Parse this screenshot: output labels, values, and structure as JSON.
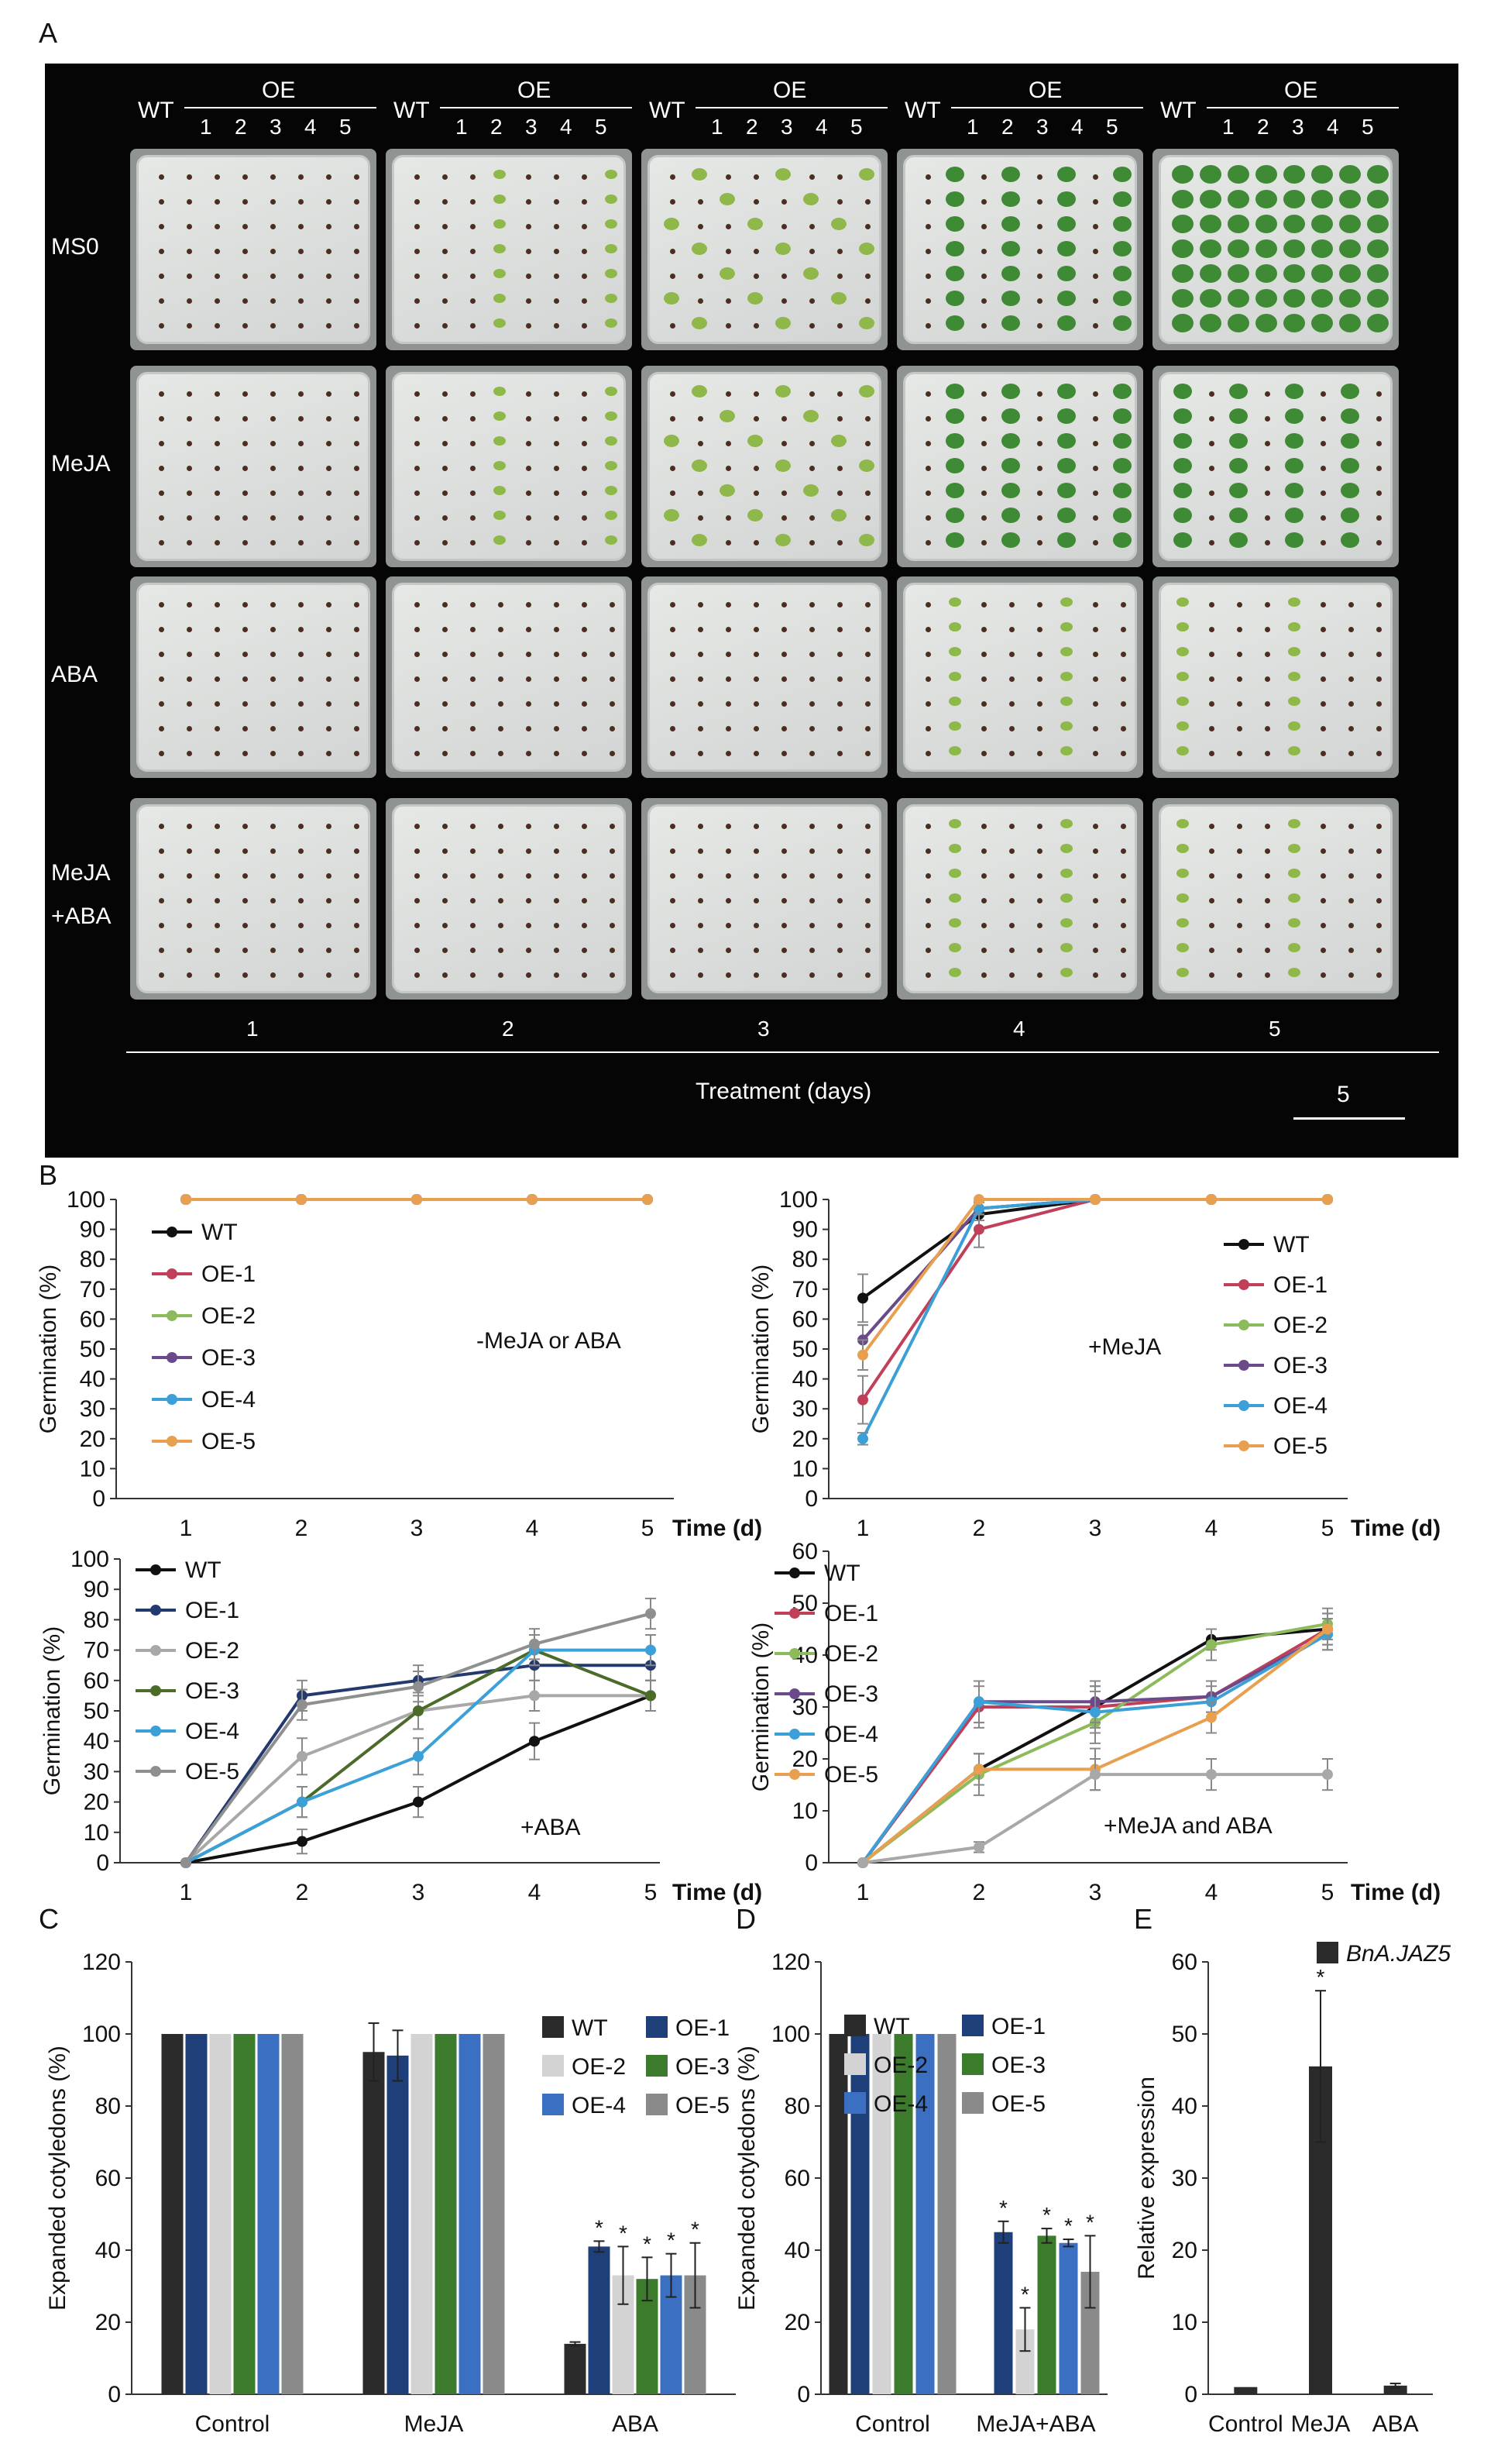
{
  "panel_labels": {
    "a": "A",
    "b": "B",
    "c": "C",
    "d": "D",
    "e": "E"
  },
  "photo_panel": {
    "header_groups": [
      {
        "wt": "WT",
        "oe": "OE",
        "lines": [
          "1",
          "2",
          "3",
          "4",
          "5"
        ]
      },
      {
        "wt": "WT",
        "oe": "OE",
        "lines": [
          "1",
          "2",
          "3",
          "4",
          "5"
        ]
      },
      {
        "wt": "WT",
        "oe": "OE",
        "lines": [
          "1",
          "2",
          "3",
          "4",
          "5"
        ]
      },
      {
        "wt": "WT",
        "oe": "OE",
        "lines": [
          "1",
          "2",
          "3",
          "4",
          "5"
        ]
      },
      {
        "wt": "WT",
        "oe": "OE",
        "lines": [
          "1",
          "2",
          "3",
          "4",
          "5"
        ]
      }
    ],
    "row_labels": [
      "MS0",
      "MeJA",
      "ABA",
      "MeJA\n+ABA"
    ],
    "day_labels": [
      "1",
      "2",
      "3",
      "4",
      "5"
    ],
    "x_axis_label": "Treatment (days)",
    "scale_label": "5",
    "seedling_growth": [
      [
        0,
        1,
        2,
        3,
        4
      ],
      [
        0,
        1,
        2,
        3,
        3
      ],
      [
        0,
        0,
        0,
        1,
        1
      ],
      [
        0,
        0,
        0,
        1,
        1
      ]
    ]
  },
  "chart_data": [
    {
      "id": "B1",
      "type": "line",
      "ylabel": "Germination (%)",
      "xlabel": "Time (d)",
      "annotation": "-MeJA or ABA",
      "ylim": [
        0,
        100
      ],
      "yticks": [
        0,
        10,
        20,
        30,
        40,
        50,
        60,
        70,
        80,
        90,
        100
      ],
      "x": [
        1,
        2,
        3,
        4,
        5
      ],
      "series": [
        {
          "name": "WT",
          "color": "#111111",
          "values": [
            100,
            100,
            100,
            100,
            100
          ],
          "err": [
            0,
            0,
            0,
            0,
            0
          ]
        },
        {
          "name": "OE-1",
          "color": "#c0405a",
          "values": [
            100,
            100,
            100,
            100,
            100
          ],
          "err": [
            0,
            0,
            0,
            0,
            0
          ]
        },
        {
          "name": "OE-2",
          "color": "#8dbb5c",
          "values": [
            100,
            100,
            100,
            100,
            100
          ],
          "err": [
            0,
            0,
            0,
            0,
            0
          ]
        },
        {
          "name": "OE-3",
          "color": "#6b4a8c",
          "values": [
            100,
            100,
            100,
            100,
            100
          ],
          "err": [
            0,
            0,
            0,
            0,
            0
          ]
        },
        {
          "name": "OE-4",
          "color": "#3ba0d8",
          "values": [
            100,
            100,
            100,
            100,
            100
          ],
          "err": [
            0,
            0,
            0,
            0,
            0
          ]
        },
        {
          "name": "OE-5",
          "color": "#e8a050",
          "values": [
            100,
            100,
            100,
            100,
            100
          ],
          "err": [
            0,
            0,
            0,
            0,
            0
          ]
        }
      ]
    },
    {
      "id": "B2",
      "type": "line",
      "ylabel": "Germination (%)",
      "xlabel": "Time (d)",
      "annotation": "+MeJA",
      "ylim": [
        0,
        100
      ],
      "yticks": [
        0,
        10,
        20,
        30,
        40,
        50,
        60,
        70,
        80,
        90,
        100
      ],
      "x": [
        1,
        2,
        3,
        4,
        5
      ],
      "series": [
        {
          "name": "WT",
          "color": "#111111",
          "values": [
            67,
            95,
            100,
            100,
            100
          ],
          "err": [
            8,
            2,
            0,
            0,
            0
          ]
        },
        {
          "name": "OE-1",
          "color": "#c0405a",
          "values": [
            33,
            90,
            100,
            100,
            100
          ],
          "err": [
            8,
            6,
            0,
            0,
            0
          ]
        },
        {
          "name": "OE-2",
          "color": "#8dbb5c",
          "values": [
            53,
            97,
            100,
            100,
            100
          ],
          "err": [
            5,
            2,
            0,
            0,
            0
          ]
        },
        {
          "name": "OE-3",
          "color": "#6b4a8c",
          "values": [
            53,
            97,
            100,
            100,
            100
          ],
          "err": [
            5,
            2,
            0,
            0,
            0
          ]
        },
        {
          "name": "OE-4",
          "color": "#3ba0d8",
          "values": [
            20,
            97,
            100,
            100,
            100
          ],
          "err": [
            2,
            2,
            0,
            0,
            0
          ]
        },
        {
          "name": "OE-5",
          "color": "#e8a050",
          "values": [
            48,
            100,
            100,
            100,
            100
          ],
          "err": [
            5,
            0,
            0,
            0,
            0
          ]
        }
      ]
    },
    {
      "id": "B3",
      "type": "line",
      "ylabel": "Germination (%)",
      "xlabel": "Time (d)",
      "annotation": "+ABA",
      "ylim": [
        0,
        100
      ],
      "yticks": [
        0,
        10,
        20,
        30,
        40,
        50,
        60,
        70,
        80,
        90,
        100
      ],
      "x": [
        1,
        2,
        3,
        4,
        5
      ],
      "series": [
        {
          "name": "WT",
          "color": "#111111",
          "values": [
            0,
            7,
            20,
            40,
            55
          ],
          "err": [
            0,
            4,
            5,
            6,
            5
          ]
        },
        {
          "name": "OE-1",
          "color": "#243a6e",
          "values": [
            0,
            55,
            60,
            65,
            65
          ],
          "err": [
            0,
            5,
            5,
            5,
            5
          ]
        },
        {
          "name": "OE-2",
          "color": "#a8a8a8",
          "values": [
            0,
            35,
            50,
            55,
            55
          ],
          "err": [
            0,
            6,
            6,
            5,
            5
          ]
        },
        {
          "name": "OE-3",
          "color": "#4a6b2a",
          "values": [
            0,
            20,
            50,
            70,
            55
          ],
          "err": [
            0,
            5,
            6,
            5,
            5
          ]
        },
        {
          "name": "OE-4",
          "color": "#3ba0d8",
          "values": [
            0,
            20,
            35,
            70,
            70
          ],
          "err": [
            0,
            5,
            6,
            5,
            5
          ]
        },
        {
          "name": "OE-5",
          "color": "#8f8f8f",
          "values": [
            0,
            52,
            58,
            72,
            82
          ],
          "err": [
            0,
            5,
            5,
            5,
            5
          ]
        }
      ]
    },
    {
      "id": "B4",
      "type": "line",
      "ylabel": "Germination (%)",
      "xlabel": "Time (d)",
      "annotation": "+MeJA and ABA",
      "ylim": [
        0,
        60
      ],
      "yticks": [
        0,
        10,
        20,
        30,
        40,
        50,
        60
      ],
      "x": [
        1,
        2,
        3,
        4,
        5
      ],
      "series": [
        {
          "name": "WT",
          "color": "#111111",
          "values": [
            0,
            18,
            30,
            43,
            45
          ],
          "err": [
            0,
            3,
            4,
            2,
            3
          ]
        },
        {
          "name": "OE-1",
          "color": "#c0405a",
          "values": [
            0,
            30,
            30,
            32,
            45
          ],
          "err": [
            0,
            4,
            4,
            3,
            3
          ]
        },
        {
          "name": "OE-2",
          "color": "#8dbb5c",
          "values": [
            0,
            17,
            27,
            42,
            46
          ],
          "err": [
            0,
            4,
            4,
            3,
            3
          ]
        },
        {
          "name": "OE-3",
          "color": "#6b4a8c",
          "values": [
            0,
            31,
            31,
            32,
            44
          ],
          "err": [
            0,
            4,
            4,
            3,
            3
          ]
        },
        {
          "name": "OE-4",
          "color": "#3ba0d8",
          "values": [
            0,
            31,
            29,
            31,
            44
          ],
          "err": [
            0,
            4,
            4,
            3,
            3
          ]
        },
        {
          "name": "OE-5",
          "color": "#e8a050",
          "values": [
            0,
            18,
            18,
            28,
            45
          ],
          "err": [
            0,
            3,
            4,
            3,
            3
          ]
        },
        {
          "name": "",
          "color": "#a8a8a8",
          "values": [
            0,
            3,
            17,
            17,
            17
          ],
          "err": [
            0,
            1,
            3,
            3,
            3
          ]
        }
      ]
    },
    {
      "id": "C",
      "type": "bar",
      "ylabel": "Expanded cotyledons (%)",
      "ylim": [
        0,
        120
      ],
      "yticks": [
        0,
        20,
        40,
        60,
        80,
        100,
        120
      ],
      "categories": [
        "Control",
        "MeJA",
        "ABA"
      ],
      "series": [
        {
          "name": "WT",
          "color": "#2b2b2b",
          "values": [
            100,
            95,
            14
          ],
          "err": [
            0,
            8,
            0.5
          ],
          "sig": [
            false,
            false,
            false
          ]
        },
        {
          "name": "OE-1",
          "color": "#1f3f7a",
          "values": [
            100,
            94,
            41
          ],
          "err": [
            0,
            7,
            1.5
          ],
          "sig": [
            false,
            false,
            true
          ]
        },
        {
          "name": "OE-2",
          "color": "#d3d3d3",
          "values": [
            100,
            100,
            33
          ],
          "err": [
            0,
            0,
            8
          ],
          "sig": [
            false,
            false,
            true
          ]
        },
        {
          "name": "OE-3",
          "color": "#3c7a2c",
          "values": [
            100,
            100,
            32
          ],
          "err": [
            0,
            0,
            6
          ],
          "sig": [
            false,
            false,
            true
          ]
        },
        {
          "name": "OE-4",
          "color": "#3a6fc2",
          "values": [
            100,
            100,
            33
          ],
          "err": [
            0,
            0,
            6
          ],
          "sig": [
            false,
            false,
            true
          ]
        },
        {
          "name": "OE-5",
          "color": "#8a8a8a",
          "values": [
            100,
            100,
            33
          ],
          "err": [
            0,
            0,
            9
          ],
          "sig": [
            false,
            false,
            true
          ]
        }
      ],
      "sig_mark": "*"
    },
    {
      "id": "D",
      "type": "bar",
      "ylabel": "Expanded cotyledons (%)",
      "ylim": [
        0,
        120
      ],
      "yticks": [
        0,
        20,
        40,
        60,
        80,
        100,
        120
      ],
      "categories": [
        "Control",
        "MeJA+ABA"
      ],
      "series": [
        {
          "name": "WT",
          "color": "#2b2b2b",
          "values": [
            100,
            0
          ],
          "err": [
            0,
            0
          ],
          "sig": [
            false,
            false
          ]
        },
        {
          "name": "OE-1",
          "color": "#1f3f7a",
          "values": [
            100,
            45
          ],
          "err": [
            0,
            3
          ],
          "sig": [
            false,
            true
          ]
        },
        {
          "name": "OE-2",
          "color": "#d3d3d3",
          "values": [
            100,
            18
          ],
          "err": [
            0,
            6
          ],
          "sig": [
            false,
            true
          ]
        },
        {
          "name": "OE-3",
          "color": "#3c7a2c",
          "values": [
            100,
            44
          ],
          "err": [
            0,
            2
          ],
          "sig": [
            false,
            true
          ]
        },
        {
          "name": "OE-4",
          "color": "#3a6fc2",
          "values": [
            100,
            42
          ],
          "err": [
            0,
            1
          ],
          "sig": [
            false,
            true
          ]
        },
        {
          "name": "OE-5",
          "color": "#8a8a8a",
          "values": [
            100,
            34
          ],
          "err": [
            0,
            10
          ],
          "sig": [
            false,
            true
          ]
        }
      ],
      "sig_mark": "*"
    },
    {
      "id": "E",
      "type": "bar",
      "ylabel": "Relative expression",
      "ylim": [
        0,
        60
      ],
      "yticks": [
        0,
        10,
        20,
        30,
        40,
        50,
        60
      ],
      "categories": [
        "Control",
        "MeJA",
        "ABA"
      ],
      "series": [
        {
          "name": "BnA.JAZ5",
          "color": "#2b2b2b",
          "values": [
            1,
            45.5,
            1.2
          ],
          "err": [
            0,
            10.5,
            0.3
          ],
          "sig": [
            false,
            true,
            false
          ]
        }
      ],
      "sig_mark": "*"
    }
  ]
}
